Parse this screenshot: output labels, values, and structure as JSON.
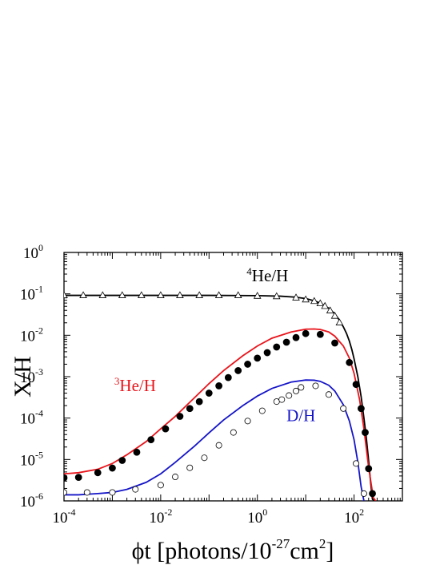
{
  "chart_data": {
    "type": "scatter",
    "xscale": "log",
    "yscale": "log",
    "xlim": [
      0.0001,
      1000
    ],
    "ylim": [
      1e-06,
      1
    ],
    "grid": false,
    "xlabel": {
      "main": "ϕt [photons/10",
      "sup": "-27",
      "tail": "cm",
      "sup2": "2",
      "close": "]"
    },
    "ylabel": "X/H",
    "x_ticks": [
      {
        "base": "10",
        "exp": "-4",
        "value": 0.0001
      },
      {
        "base": "10",
        "exp": "-2",
        "value": 0.01
      },
      {
        "base": "10",
        "exp": "0",
        "value": 1
      },
      {
        "base": "10",
        "exp": "2",
        "value": 100
      }
    ],
    "y_ticks": [
      {
        "base": "10",
        "exp": "0",
        "value": 1
      },
      {
        "base": "10",
        "exp": "-1",
        "value": 0.1
      },
      {
        "base": "10",
        "exp": "-2",
        "value": 0.01
      },
      {
        "base": "10",
        "exp": "-3",
        "value": 0.001
      },
      {
        "base": "10",
        "exp": "-4",
        "value": 0.0001
      },
      {
        "base": "10",
        "exp": "-5",
        "value": 1e-05
      },
      {
        "base": "10",
        "exp": "-6",
        "value": 1e-06
      }
    ],
    "annotations": [
      {
        "id": "he4",
        "sup": "4",
        "text": "He/H",
        "color": "#000000",
        "x": 0.6,
        "y": 0.2
      },
      {
        "id": "he3",
        "sup": "3",
        "text": "He/H",
        "color": "#e8141b",
        "x": 0.0011,
        "y": 0.00045
      },
      {
        "id": "dh",
        "sup": "",
        "text": "D/H",
        "color": "#1515c8",
        "x": 4.0,
        "y": 8.5e-05
      }
    ],
    "series": [
      {
        "id": "he4",
        "color": "#000000",
        "line_x": [
          0.0001,
          0.001,
          0.01,
          0.1,
          1,
          3,
          6,
          10,
          15,
          20,
          30,
          40,
          50,
          60,
          70,
          80,
          90,
          100,
          120,
          140,
          160,
          180,
          200,
          220,
          240,
          260
        ],
        "line_y": [
          0.092,
          0.092,
          0.092,
          0.092,
          0.0905,
          0.088,
          0.0835,
          0.077,
          0.068,
          0.06,
          0.045,
          0.033,
          0.023,
          0.016,
          0.011,
          0.0072,
          0.0045,
          0.0027,
          0.00098,
          0.00033,
          0.0001,
          3.2e-05,
          9.5e-06,
          2.8e-06,
          1.1e-06,
          1e-06
        ],
        "marker": "triangle-open",
        "points_x": [
          0.0001,
          0.00025,
          0.00063,
          0.0016,
          0.004,
          0.01,
          0.025,
          0.063,
          0.16,
          0.4,
          1.0,
          2.5,
          6.3,
          10,
          15,
          20,
          25,
          32,
          40,
          50
        ],
        "points_y": [
          0.091,
          0.091,
          0.091,
          0.091,
          0.091,
          0.091,
          0.091,
          0.091,
          0.091,
          0.091,
          0.088,
          0.086,
          0.08,
          0.072,
          0.066,
          0.058,
          0.05,
          0.039,
          0.029,
          0.02
        ]
      },
      {
        "id": "he3",
        "color": "#e8141b",
        "line_x": [
          0.0001,
          0.0002,
          0.0005,
          0.001,
          0.002,
          0.005,
          0.01,
          0.02,
          0.05,
          0.1,
          0.2,
          0.5,
          1,
          2,
          5,
          10,
          15,
          20,
          30,
          40,
          60,
          80,
          100,
          130,
          160,
          200,
          250,
          280
        ],
        "line_y": [
          4.5e-06,
          4.8e-06,
          5.8e-06,
          8e-06,
          1.3e-05,
          2.7e-05,
          5.5e-05,
          0.00011,
          0.00031,
          0.00068,
          0.0014,
          0.0032,
          0.0055,
          0.0085,
          0.012,
          0.014,
          0.0142,
          0.0138,
          0.012,
          0.0095,
          0.0055,
          0.0028,
          0.0012,
          0.00028,
          5.5e-05,
          6.5e-06,
          1.2e-06,
          1e-06
        ],
        "marker": "circle-filled",
        "points_x": [
          0.0001,
          0.0002,
          0.0005,
          0.001,
          0.0016,
          0.0032,
          0.0063,
          0.0126,
          0.025,
          0.04,
          0.063,
          0.1,
          0.16,
          0.25,
          0.4,
          0.63,
          1.0,
          1.6,
          2.5,
          4,
          6.3,
          10,
          20,
          40,
          80,
          110,
          140,
          170,
          200,
          240
        ],
        "points_y": [
          3.6e-06,
          3.7e-06,
          4.8e-06,
          6.2e-06,
          9.5e-06,
          1.5e-05,
          3e-05,
          5.5e-05,
          0.00011,
          0.00017,
          0.00025,
          0.0004,
          0.0006,
          0.00095,
          0.0014,
          0.002,
          0.0028,
          0.0038,
          0.0052,
          0.0068,
          0.0088,
          0.011,
          0.0105,
          0.0065,
          0.0022,
          0.00065,
          0.00017,
          4.5e-05,
          6e-06,
          1.5e-06
        ]
      },
      {
        "id": "dh",
        "color": "#1515c8",
        "line_x": [
          0.0001,
          0.0002,
          0.0005,
          0.001,
          0.002,
          0.005,
          0.01,
          0.02,
          0.05,
          0.1,
          0.2,
          0.5,
          1,
          2,
          5,
          10,
          15,
          20,
          30,
          40,
          60,
          80,
          100,
          120,
          140,
          160
        ],
        "line_y": [
          1.4e-06,
          1.4e-06,
          1.5e-06,
          1.6e-06,
          1.9e-06,
          2.8e-06,
          4.5e-06,
          8.5e-06,
          2.1e-05,
          4.4e-05,
          9e-05,
          0.0002,
          0.00034,
          0.00052,
          0.00074,
          0.00083,
          0.00082,
          0.00077,
          0.00062,
          0.00045,
          0.00021,
          8.5e-05,
          3e-05,
          8.5e-06,
          2.2e-06,
          1e-06
        ],
        "marker": "circle-open",
        "points_x": [
          0.0001,
          0.0003,
          0.001,
          0.003,
          0.01,
          0.02,
          0.04,
          0.08,
          0.16,
          0.32,
          0.63,
          1.26,
          2.5,
          3.2,
          4.5,
          6.3,
          8,
          16,
          30,
          60,
          110,
          160
        ],
        "points_y": [
          1.6e-06,
          1.6e-06,
          1.6e-06,
          1.9e-06,
          2.4e-06,
          3.8e-06,
          6.3e-06,
          1.1e-05,
          2.2e-05,
          4.5e-05,
          8.5e-05,
          0.00015,
          0.00025,
          0.00028,
          0.00035,
          0.00045,
          0.00055,
          0.0006,
          0.00037,
          0.00017,
          8e-06,
          1.5e-06
        ]
      }
    ]
  }
}
